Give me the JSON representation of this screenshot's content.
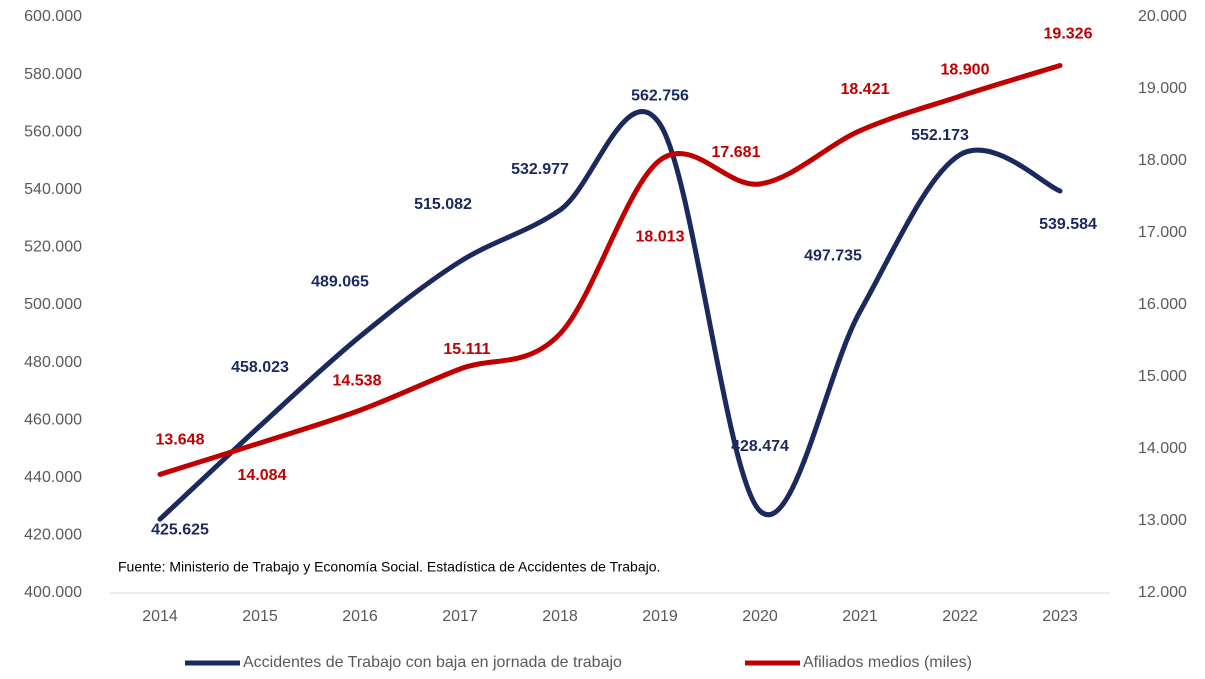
{
  "chart_data": {
    "type": "line",
    "note": "Fuente: Ministerio de Trabajo y Economía Social. Estadística de Accidentes de Trabajo.",
    "categories": [
      "2014",
      "2015",
      "2016",
      "2017",
      "2018",
      "2019",
      "2020",
      "2021",
      "2022",
      "2023"
    ],
    "series": [
      {
        "name": "Accidentes de Trabajo con baja en jornada de trabajo",
        "color": "#1b2a5e",
        "values": [
          425625,
          458023,
          489065,
          515082,
          532977,
          562756,
          428474,
          497735,
          552173,
          539584
        ],
        "value_labels": [
          "425.625",
          "458.023",
          "489.065",
          "515.082",
          "532.977",
          "562.756",
          "428.474",
          "497.735",
          "552.173",
          "539.584"
        ]
      },
      {
        "name": "Afiliados medios (miles)",
        "color": "#c00000",
        "axis": "y2",
        "values": [
          13648,
          14084,
          14538,
          15111,
          15600,
          18013,
          17681,
          18421,
          18900,
          19326
        ],
        "value_labels": [
          "13.648",
          "14.084",
          "14.538",
          "15.111",
          null,
          "18.013",
          "17.681",
          "18.421",
          "18.900",
          "19.326"
        ]
      }
    ],
    "ylim": [
      400000,
      600000
    ],
    "yticks": [
      {
        "value": 400000,
        "label": "400.000"
      },
      {
        "value": 420000,
        "label": "420.000"
      },
      {
        "value": 440000,
        "label": "440.000"
      },
      {
        "value": 460000,
        "label": "460.000"
      },
      {
        "value": 480000,
        "label": "480.000"
      },
      {
        "value": 500000,
        "label": "500.000"
      },
      {
        "value": 520000,
        "label": "520.000"
      },
      {
        "value": 540000,
        "label": "540.000"
      },
      {
        "value": 560000,
        "label": "560.000"
      },
      {
        "value": 580000,
        "label": "580.000"
      },
      {
        "value": 600000,
        "label": "600.000"
      }
    ],
    "y2lim": [
      12000,
      20000
    ],
    "y2ticks": [
      {
        "value": 12000,
        "label": "12.000"
      },
      {
        "value": 13000,
        "label": "13.000"
      },
      {
        "value": 14000,
        "label": "14.000"
      },
      {
        "value": 15000,
        "label": "15.000"
      },
      {
        "value": 16000,
        "label": "16.000"
      },
      {
        "value": 17000,
        "label": "17.000"
      },
      {
        "value": 18000,
        "label": "18.000"
      },
      {
        "value": 19000,
        "label": "19.000"
      },
      {
        "value": 20000,
        "label": "20.000"
      }
    ],
    "legend": "bottom"
  }
}
